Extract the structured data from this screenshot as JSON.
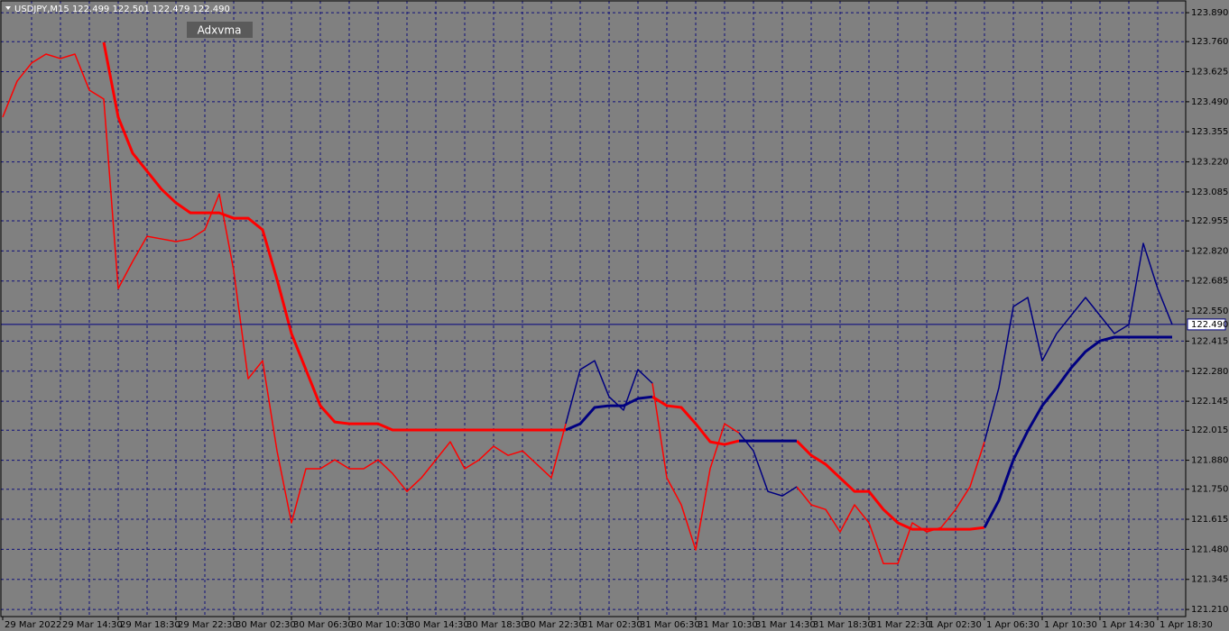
{
  "chart_data": {
    "type": "line",
    "title": "USDJPY,M15  122.499 122.501 122.479 122.490",
    "indicator_label": "Adxvma",
    "grid": true,
    "categories": [
      "29 Mar 2022",
      null,
      null,
      null,
      "29 Mar 14:30",
      null,
      null,
      null,
      "29 Mar 18:30",
      null,
      null,
      null,
      "29 Mar 22:30",
      null,
      null,
      null,
      "30 Mar 02:30",
      null,
      null,
      null,
      "30 Mar 06:30",
      null,
      null,
      null,
      "30 Mar 10:30",
      null,
      null,
      null,
      "30 Mar 14:30",
      null,
      null,
      null,
      "30 Mar 18:30",
      null,
      null,
      null,
      "30 Mar 22:30",
      null,
      null,
      null,
      "31 Mar 02:30",
      null,
      null,
      null,
      "31 Mar 06:30",
      null,
      null,
      null,
      "31 Mar 10:30",
      null,
      null,
      null,
      "31 Mar 14:30",
      null,
      null,
      null,
      "31 Mar 18:30",
      null,
      null,
      null,
      "31 Mar 22:30",
      null,
      null,
      null,
      "1 Apr 02:30",
      null,
      null,
      null,
      "1 Apr 06:30",
      null,
      null,
      null,
      "1 Apr 10:30",
      null,
      null,
      null,
      "1 Apr 14:30",
      null,
      null,
      null,
      "1 Apr 18:30",
      null
    ],
    "ylim": [
      121.178,
      123.947
    ],
    "yticks": [
      {
        "value": 121.21,
        "label": "121.210"
      },
      {
        "value": 121.345,
        "label": "121.345"
      },
      {
        "value": 121.48,
        "label": "121.480"
      },
      {
        "value": 121.615,
        "label": "121.615"
      },
      {
        "value": 121.75,
        "label": "121.750"
      },
      {
        "value": 121.88,
        "label": "121.880"
      },
      {
        "value": 122.015,
        "label": "122.015"
      },
      {
        "value": 122.145,
        "label": "122.145"
      },
      {
        "value": 122.28,
        "label": "122.280"
      },
      {
        "value": 122.415,
        "label": "122.415"
      },
      {
        "value": 122.55,
        "label": "122.550"
      },
      {
        "value": 122.685,
        "label": "122.685"
      },
      {
        "value": 122.82,
        "label": "122.820"
      },
      {
        "value": 122.955,
        "label": "122.955"
      },
      {
        "value": 123.085,
        "label": "123.085"
      },
      {
        "value": 123.22,
        "label": "123.220"
      },
      {
        "value": 123.355,
        "label": "123.355"
      },
      {
        "value": 123.49,
        "label": "123.490"
      },
      {
        "value": 123.625,
        "label": "123.625"
      },
      {
        "value": 123.76,
        "label": "123.760"
      },
      {
        "value": 123.89,
        "label": "123.890"
      }
    ],
    "current_price": {
      "value": 122.49,
      "label": "122.490"
    },
    "series": [
      {
        "color": "#ff0000",
        "width": 1.5,
        "values": [
          123.421,
          123.583,
          123.664,
          123.704,
          123.684,
          123.704,
          123.542,
          123.502,
          122.651,
          122.773,
          122.886,
          122.874,
          122.862,
          122.874,
          122.915,
          123.076,
          122.732,
          122.246,
          122.327,
          121.922,
          121.599,
          121.842,
          121.842,
          121.882,
          121.842,
          121.842,
          121.882,
          121.821,
          121.74,
          121.801,
          121.882,
          121.963,
          121.842,
          121.882,
          121.943,
          121.902,
          121.922,
          121.862,
          121.801,
          122.044,
          null,
          null,
          null,
          null,
          null,
          122.226,
          121.801,
          121.68,
          121.477,
          121.842,
          122.044,
          122.003,
          null,
          null,
          null,
          121.761,
          121.68,
          121.659,
          121.558,
          121.68,
          121.599,
          121.416,
          121.416,
          121.599,
          121.558,
          121.578,
          121.659,
          121.761,
          121.963,
          null,
          null,
          null,
          null,
          null,
          null,
          null,
          null,
          null,
          null,
          null,
          null,
          null
        ]
      },
      {
        "color": "#000080",
        "width": 1.5,
        "values": [
          null,
          null,
          null,
          null,
          null,
          null,
          null,
          null,
          null,
          null,
          null,
          null,
          null,
          null,
          null,
          null,
          null,
          null,
          null,
          null,
          null,
          null,
          null,
          null,
          null,
          null,
          null,
          null,
          null,
          null,
          null,
          null,
          null,
          null,
          null,
          null,
          null,
          null,
          null,
          122.044,
          122.287,
          122.327,
          122.165,
          122.105,
          122.287,
          122.226,
          null,
          null,
          null,
          null,
          null,
          122.003,
          121.922,
          121.74,
          121.72,
          121.761,
          null,
          null,
          null,
          null,
          null,
          null,
          null,
          null,
          null,
          null,
          null,
          null,
          121.963,
          122.206,
          122.57,
          122.611,
          122.327,
          122.449,
          122.53,
          122.611,
          122.53,
          122.449,
          122.489,
          122.854,
          122.651,
          122.49
        ]
      },
      {
        "color": "#ff0000",
        "width": 3,
        "values": [
          null,
          null,
          null,
          null,
          null,
          null,
          null,
          123.757,
          123.421,
          123.259,
          123.178,
          123.097,
          123.036,
          122.991,
          122.991,
          122.991,
          122.967,
          122.967,
          122.915,
          122.692,
          122.449,
          122.287,
          122.125,
          122.052,
          122.044,
          122.044,
          122.044,
          122.016,
          122.016,
          122.016,
          122.016,
          122.016,
          122.016,
          122.016,
          122.016,
          122.016,
          122.016,
          122.016,
          122.016,
          122.016,
          null,
          null,
          null,
          null,
          null,
          122.165,
          122.125,
          122.117,
          122.044,
          121.963,
          121.951,
          121.967,
          null,
          null,
          null,
          121.967,
          121.902,
          121.862,
          121.801,
          121.74,
          121.74,
          121.659,
          121.599,
          121.57,
          121.57,
          121.57,
          121.57,
          121.57,
          121.578,
          null,
          null,
          null,
          null,
          null,
          null,
          null,
          null,
          null,
          null,
          null,
          null,
          null
        ]
      },
      {
        "color": "#000080",
        "width": 3,
        "values": [
          null,
          null,
          null,
          null,
          null,
          null,
          null,
          null,
          null,
          null,
          null,
          null,
          null,
          null,
          null,
          null,
          null,
          null,
          null,
          null,
          null,
          null,
          null,
          null,
          null,
          null,
          null,
          null,
          null,
          null,
          null,
          null,
          null,
          null,
          null,
          null,
          null,
          null,
          null,
          122.016,
          122.044,
          122.117,
          122.125,
          122.125,
          122.157,
          122.165,
          null,
          null,
          null,
          null,
          null,
          121.967,
          121.967,
          121.967,
          121.967,
          121.967,
          null,
          null,
          null,
          null,
          null,
          null,
          null,
          null,
          null,
          null,
          null,
          null,
          121.578,
          121.7,
          121.882,
          122.012,
          122.125,
          122.206,
          122.295,
          122.368,
          122.416,
          122.433,
          122.433,
          122.433,
          122.433,
          122.433
        ]
      }
    ]
  }
}
